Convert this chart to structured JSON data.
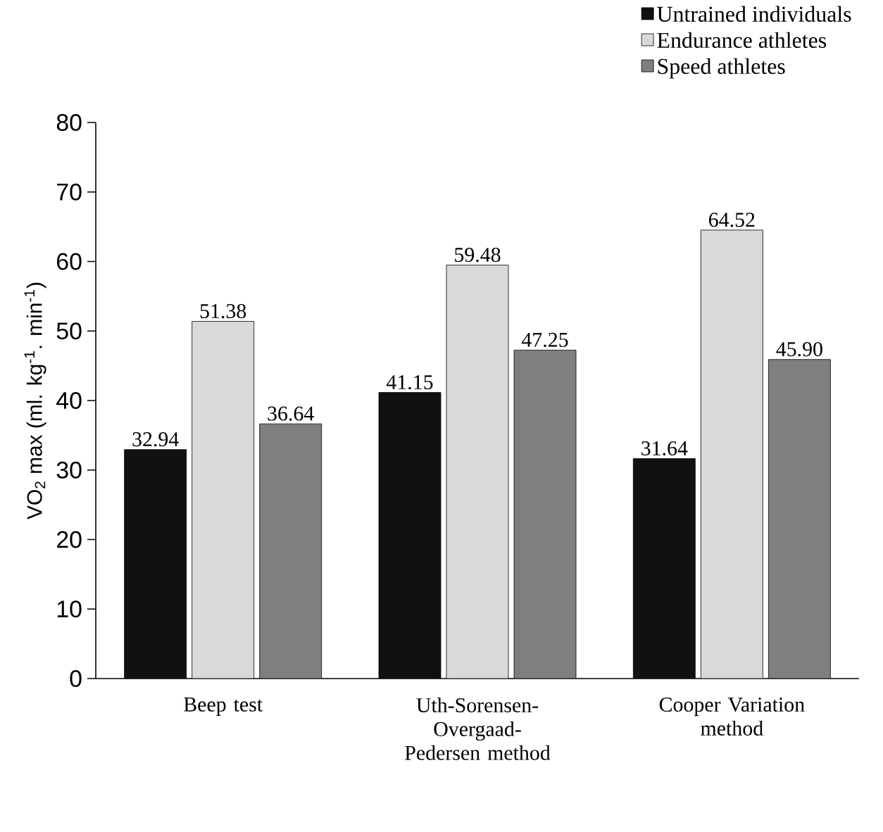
{
  "chart_data": {
    "type": "bar",
    "ylabel": "VO$_{2}$ max (ml. kg$^{-1}$. min$^{-1}$)",
    "categories": [
      "Beep test",
      "Uth-Sorensen-Overgaad-Pedersen method",
      "Cooper Variation method"
    ],
    "series": [
      {
        "name": "Untrained individuals",
        "color": "#111111",
        "values": [
          32.94,
          41.15,
          31.64
        ],
        "value_labels": [
          "32.94",
          "41.15",
          "31.64"
        ]
      },
      {
        "name": "Endurance athletes",
        "color": "#d9d9d9",
        "values": [
          51.38,
          59.48,
          64.52
        ],
        "value_labels": [
          "51.38",
          "59.48",
          "64.52"
        ]
      },
      {
        "name": "Speed athletes",
        "color": "#7f7f7f",
        "values": [
          36.64,
          47.25,
          45.9
        ],
        "value_labels": [
          "36.64",
          "47.25",
          "45.90"
        ]
      }
    ],
    "ylim": [
      0,
      80
    ],
    "yticks": [
      0,
      10,
      20,
      30,
      40,
      50,
      60,
      70,
      80
    ],
    "legend": "top right",
    "grid": false
  }
}
